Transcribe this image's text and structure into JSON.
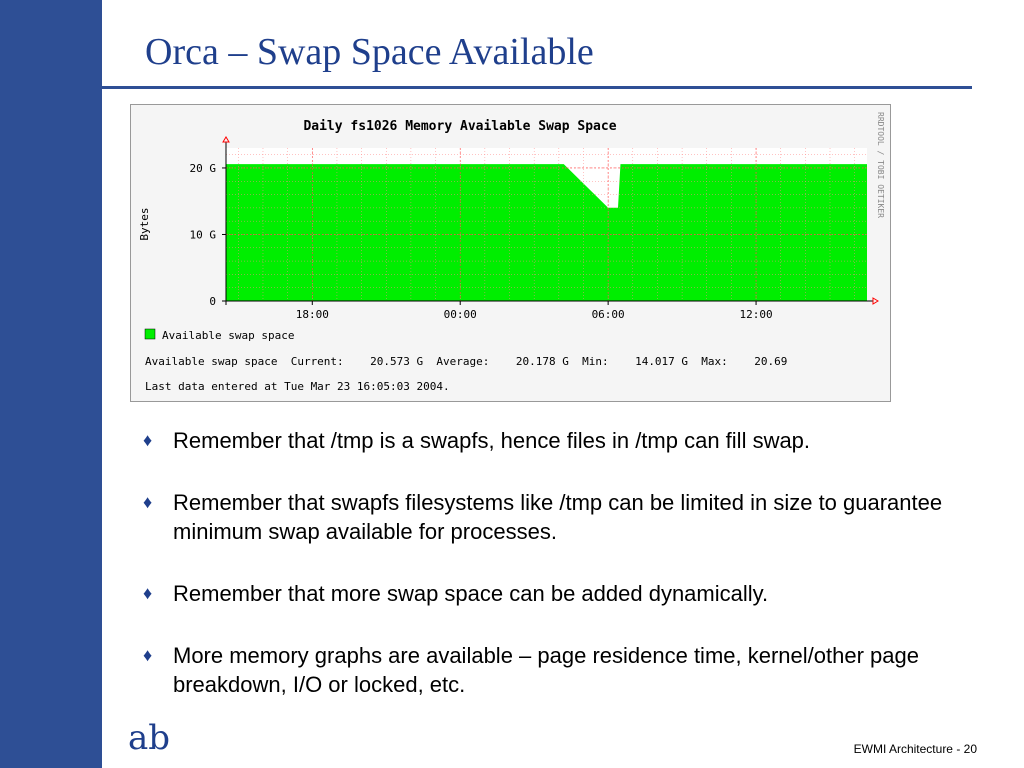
{
  "slide": {
    "title": "Orca – Swap Space Available",
    "logo_glyph": "ab",
    "footer": "EWMI Architecture - 20",
    "accent_color": "#2e4f95",
    "title_color": "#1f3f8c"
  },
  "bullet_marker": "♦",
  "bullets": [
    "Remember that /tmp is a swapfs, hence files in /tmp can fill swap.",
    "Remember that swapfs filesystems like /tmp can be limited in size to guarantee minimum swap available for processes.",
    "Remember that more swap space can be added dynamically.",
    "More memory graphs are available – page residence time, kernel/other page breakdown, I/O or locked, etc."
  ],
  "chart_data": {
    "type": "area",
    "title": "Daily fs1026 Memory Available Swap Space",
    "ylabel": "Bytes",
    "xlabel": "",
    "side_label": "RRDTOOL / TOBI OETIKER",
    "y_ticks": [
      0,
      10,
      20
    ],
    "y_tick_labels": [
      "0",
      "10 G",
      "20 G"
    ],
    "ylim": [
      0,
      23
    ],
    "x_ticks": [
      [
        "18:00",
        18
      ],
      [
        "00:00",
        24
      ],
      [
        "06:00",
        30
      ],
      [
        "12:00",
        36
      ]
    ],
    "xlim": [
      14.5,
      40.5
    ],
    "series": [
      {
        "name": "Available swap space",
        "color": "#00ee00",
        "x": [
          14.5,
          28.2,
          30.0,
          30.4,
          30.5,
          40.5
        ],
        "values": [
          20.57,
          20.57,
          14.02,
          14.02,
          20.57,
          20.57
        ]
      }
    ],
    "legend": "Available swap space",
    "stats_line": "Available swap space  Current:    20.573 G  Average:    20.178 G  Min:    14.017 G  Max:    20.69",
    "last_update": "Last data entered at Tue Mar 23 16:05:03 2004.",
    "grid": true
  }
}
